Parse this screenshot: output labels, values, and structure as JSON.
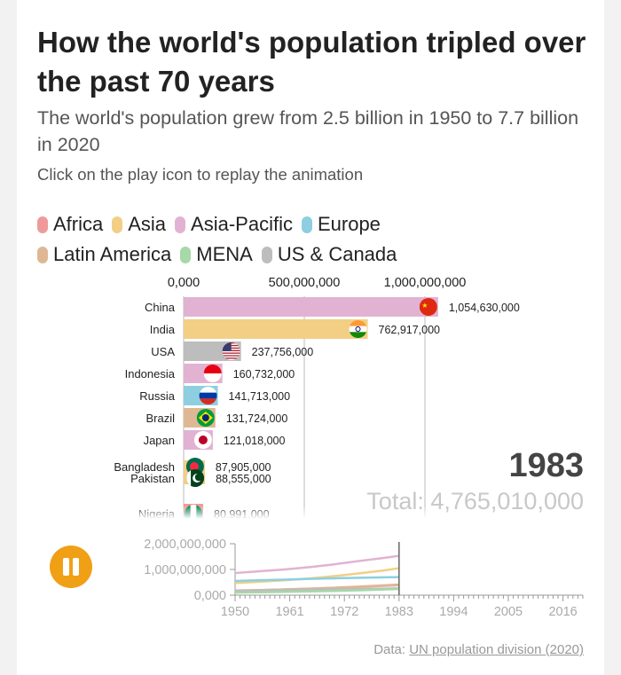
{
  "header": {
    "title": "How the world's population tripled over the past 70 years",
    "subtitle": "The world's population grew from 2.5 billion in 1950 to 7.7 billion in 2020",
    "note": "Click on the play icon to replay the animation"
  },
  "legend": [
    {
      "label": "Africa",
      "color": "#ef9a9a"
    },
    {
      "label": "Asia",
      "color": "#f2cf84"
    },
    {
      "label": "Asia-Pacific",
      "color": "#e2b2d2"
    },
    {
      "label": "Europe",
      "color": "#8dcfe0"
    },
    {
      "label": "Latin America",
      "color": "#deb894"
    },
    {
      "label": "MENA",
      "color": "#a6d8a8"
    },
    {
      "label": "US & Canada",
      "color": "#bdbdbd"
    }
  ],
  "status": {
    "year": "1983",
    "total": "Total: 4,765,010,000"
  },
  "controls": {
    "play_state": "pause-icon"
  },
  "source": {
    "prefix": "Data: ",
    "link": "UN population division (2020)"
  },
  "chart_data": [
    {
      "type": "bar",
      "orientation": "horizontal",
      "x_ticks": [
        "0,000",
        "500,000,000",
        "1,000,000,000"
      ],
      "xlim": [
        0,
        1100000000
      ],
      "categories": [
        "China",
        "India",
        "USA",
        "Indonesia",
        "Russia",
        "Brazil",
        "Japan",
        "Bangladesh",
        "Pakistan",
        "Nigeria"
      ],
      "values": [
        1054630000,
        762917000,
        237756000,
        160732000,
        141713000,
        131724000,
        121018000,
        87905000,
        88555000,
        80991000
      ],
      "value_labels": [
        "1,054,630,000",
        "762,917,000",
        "237,756,000",
        "160,732,000",
        "141,713,000",
        "131,724,000",
        "121,018,000",
        "87,905,000",
        "88,555,000",
        "80,991,000"
      ],
      "regions": [
        "Asia-Pacific",
        "Asia",
        "US & Canada",
        "Asia-Pacific",
        "Europe",
        "Latin America",
        "Asia-Pacific",
        "Asia",
        "Asia",
        "Africa"
      ],
      "flag_icons": [
        "china-flag-icon",
        "india-flag-icon",
        "usa-flag-icon",
        "indonesia-flag-icon",
        "russia-flag-icon",
        "brazil-flag-icon",
        "japan-flag-icon",
        "bangladesh-flag-icon",
        "pakistan-flag-icon",
        "nigeria-flag-icon"
      ]
    },
    {
      "type": "line",
      "x": [
        1950,
        1955,
        1960,
        1965,
        1970,
        1975,
        1980,
        1983
      ],
      "x_ticks": [
        "1950",
        "1961",
        "1972",
        "1983",
        "1994",
        "2005",
        "2016"
      ],
      "xlim": [
        1950,
        2020
      ],
      "y_ticks": [
        "0,000",
        "1,000,000,000",
        "2,000,000,000"
      ],
      "ylim": [
        0,
        2000000000
      ],
      "series": [
        {
          "region": "Asia-Pacific",
          "values": [
            860000000,
            930000000,
            1000000000,
            1090000000,
            1200000000,
            1330000000,
            1450000000,
            1530000000
          ]
        },
        {
          "region": "Asia",
          "values": [
            470000000,
            520000000,
            580000000,
            650000000,
            740000000,
            850000000,
            960000000,
            1050000000
          ]
        },
        {
          "region": "Europe",
          "values": [
            550000000,
            580000000,
            605000000,
            635000000,
            657000000,
            677000000,
            694000000,
            702000000
          ]
        },
        {
          "region": "Africa",
          "values": [
            180000000,
            200000000,
            225000000,
            255000000,
            290000000,
            330000000,
            380000000,
            410000000
          ]
        },
        {
          "region": "Latin America",
          "values": [
            170000000,
            195000000,
            220000000,
            250000000,
            285000000,
            320000000,
            360000000,
            385000000
          ]
        },
        {
          "region": "US & Canada",
          "values": [
            172000000,
            187000000,
            204000000,
            219000000,
            231000000,
            243000000,
            254000000,
            262000000
          ]
        },
        {
          "region": "MENA",
          "values": [
            100000000,
            112000000,
            128000000,
            145000000,
            165000000,
            190000000,
            220000000,
            240000000
          ]
        }
      ]
    }
  ]
}
